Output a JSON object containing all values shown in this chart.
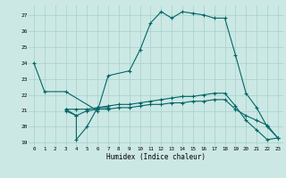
{
  "xlabel": "Humidex (Indice chaleur)",
  "bg_color": "#cce8e4",
  "grid_color": "#aad4cf",
  "line_color": "#006666",
  "xlim": [
    -0.5,
    23.5
  ],
  "ylim": [
    18.8,
    27.6
  ],
  "yticks": [
    19,
    20,
    21,
    22,
    23,
    24,
    25,
    26,
    27
  ],
  "xticks": [
    0,
    1,
    2,
    3,
    4,
    5,
    6,
    7,
    8,
    9,
    10,
    11,
    12,
    13,
    14,
    15,
    16,
    17,
    18,
    19,
    20,
    21,
    22,
    23
  ],
  "series": [
    {
      "x": [
        0,
        1,
        3,
        6,
        7,
        9,
        10,
        11,
        12,
        13,
        14,
        15,
        16,
        17,
        18,
        19,
        20,
        21,
        22,
        23
      ],
      "y": [
        24,
        22.2,
        22.2,
        21.0,
        23.2,
        23.5,
        24.8,
        26.5,
        27.2,
        26.8,
        27.2,
        27.1,
        27.0,
        26.8,
        26.8,
        24.5,
        22.1,
        21.2,
        20.0,
        19.3
      ]
    },
    {
      "x": [
        3,
        4,
        5,
        6,
        7,
        8,
        9,
        10,
        11,
        12,
        13,
        14,
        15,
        16,
        17,
        18,
        19,
        20,
        21,
        22,
        23
      ],
      "y": [
        21.1,
        21.1,
        21.1,
        21.2,
        21.3,
        21.4,
        21.4,
        21.5,
        21.6,
        21.7,
        21.8,
        21.9,
        21.9,
        22.0,
        22.1,
        22.1,
        21.3,
        20.4,
        19.8,
        19.2,
        19.3
      ]
    },
    {
      "x": [
        3,
        4,
        5,
        6,
        7,
        8,
        9,
        10,
        11,
        12,
        13,
        14,
        15,
        16,
        17,
        18,
        19,
        20,
        21,
        22,
        23
      ],
      "y": [
        21.0,
        20.7,
        21.0,
        21.1,
        21.1,
        21.2,
        21.2,
        21.3,
        21.4,
        21.4,
        21.5,
        21.5,
        21.6,
        21.6,
        21.7,
        21.7,
        21.1,
        20.7,
        20.4,
        20.1,
        19.3
      ]
    },
    {
      "x": [
        3,
        4,
        4,
        5,
        6,
        7
      ],
      "y": [
        21.1,
        20.7,
        19.2,
        20.0,
        21.2,
        21.2
      ]
    }
  ]
}
